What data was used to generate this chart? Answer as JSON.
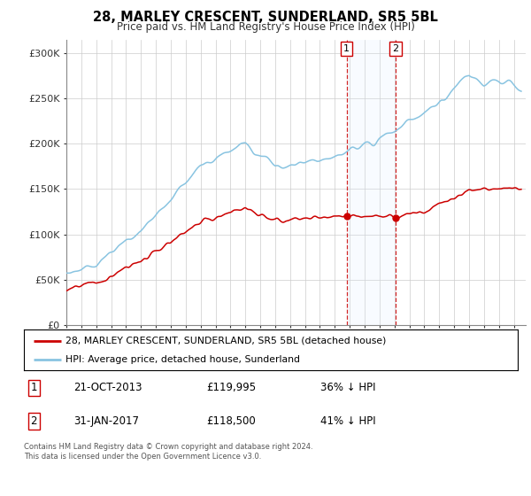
{
  "title": "28, MARLEY CRESCENT, SUNDERLAND, SR5 5BL",
  "subtitle": "Price paid vs. HM Land Registry's House Price Index (HPI)",
  "ylabel_ticks": [
    "£0",
    "£50K",
    "£100K",
    "£150K",
    "£200K",
    "£250K",
    "£300K"
  ],
  "ytick_values": [
    0,
    50000,
    100000,
    150000,
    200000,
    250000,
    300000
  ],
  "ylim": [
    0,
    315000
  ],
  "xlim_start": 1995.0,
  "xlim_end": 2025.8,
  "sale1_date": 2013.8,
  "sale2_date": 2017.08,
  "sale1_price": 119995,
  "sale2_price": 118500,
  "legend_line1": "28, MARLEY CRESCENT, SUNDERLAND, SR5 5BL (detached house)",
  "legend_line2": "HPI: Average price, detached house, Sunderland",
  "table_row1": [
    "1",
    "21-OCT-2013",
    "£119,995",
    "36% ↓ HPI"
  ],
  "table_row2": [
    "2",
    "31-JAN-2017",
    "£118,500",
    "41% ↓ HPI"
  ],
  "footer": "Contains HM Land Registry data © Crown copyright and database right 2024.\nThis data is licensed under the Open Government Licence v3.0.",
  "hpi_color": "#89c4e1",
  "price_color": "#cc0000",
  "shade_color": "#ddeeff",
  "grid_color": "#cccccc"
}
